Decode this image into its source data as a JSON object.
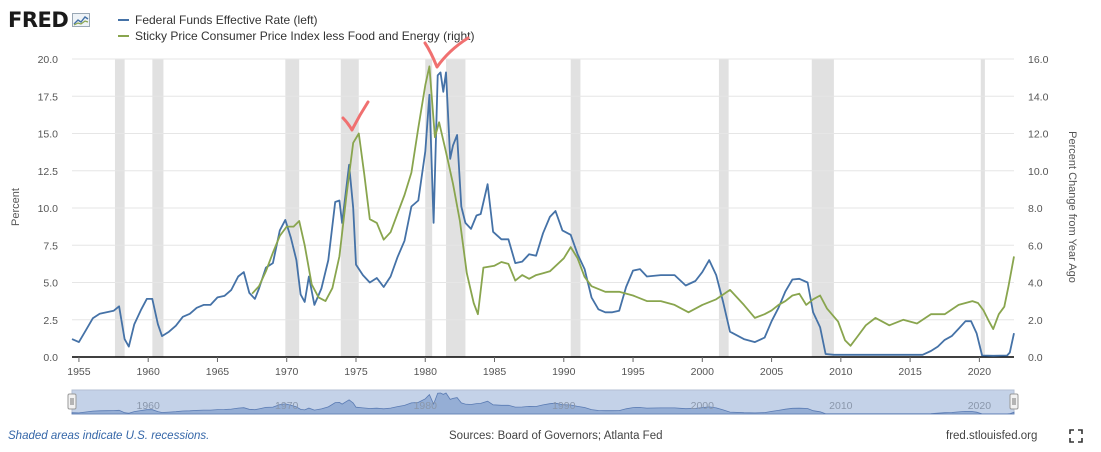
{
  "header": {
    "logo_text": "FRED",
    "legend": [
      {
        "label": "Federal Funds Effective Rate (left)",
        "color": "#4572a7"
      },
      {
        "label": "Sticky Price Consumer Price Index less Food and Energy (right)",
        "color": "#89a54e"
      }
    ]
  },
  "footer": {
    "recession_note": "Shaded areas indicate U.S. recessions.",
    "sources": "Sources: Board of Governors; Atlanta Fed",
    "site": "fred.stlouisfed.org",
    "fullscreen_icon": "fullscreen-icon"
  },
  "annotations": {
    "color": "#f07070",
    "marks": [
      "check-mark-1975",
      "check-mark-1981"
    ]
  },
  "chart_data": {
    "type": "line",
    "x_range": [
      1954.5,
      2022.5
    ],
    "x_ticks": [
      1955,
      1960,
      1965,
      1970,
      1975,
      1980,
      1985,
      1990,
      1995,
      2000,
      2005,
      2010,
      2015,
      2020
    ],
    "y_left": {
      "label": "Percent",
      "range": [
        0,
        20
      ],
      "ticks": [
        "0.0",
        "2.5",
        "5.0",
        "7.5",
        "10.0",
        "12.5",
        "15.0",
        "17.5",
        "20.0"
      ]
    },
    "y_right": {
      "label": "Percent Change from Year Ago",
      "range": [
        0,
        16
      ],
      "ticks": [
        "0.0",
        "2.0",
        "4.0",
        "6.0",
        "8.0",
        "10.0",
        "12.0",
        "14.0",
        "16.0"
      ]
    },
    "recessions": [
      [
        1957.6,
        1958.3
      ],
      [
        1960.3,
        1961.1
      ],
      [
        1969.9,
        1970.9
      ],
      [
        1973.9,
        1975.2
      ],
      [
        1980.0,
        1980.5
      ],
      [
        1981.5,
        1982.9
      ],
      [
        1990.5,
        1991.2
      ],
      [
        2001.2,
        2001.9
      ],
      [
        2007.9,
        2009.5
      ],
      [
        2020.1,
        2020.4
      ]
    ],
    "series": [
      {
        "name": "Federal Funds Effective Rate (left)",
        "axis": "left",
        "color": "#4572a7",
        "points": [
          [
            1954.5,
            1.2
          ],
          [
            1955,
            1.0
          ],
          [
            1955.5,
            1.8
          ],
          [
            1956,
            2.6
          ],
          [
            1956.5,
            2.9
          ],
          [
            1957,
            3.0
          ],
          [
            1957.5,
            3.1
          ],
          [
            1957.9,
            3.4
          ],
          [
            1958.3,
            1.2
          ],
          [
            1958.6,
            0.7
          ],
          [
            1959,
            2.2
          ],
          [
            1959.5,
            3.2
          ],
          [
            1959.9,
            3.9
          ],
          [
            1960.3,
            3.9
          ],
          [
            1960.7,
            2.2
          ],
          [
            1961,
            1.4
          ],
          [
            1961.5,
            1.7
          ],
          [
            1962,
            2.1
          ],
          [
            1962.5,
            2.7
          ],
          [
            1963,
            2.9
          ],
          [
            1963.5,
            3.3
          ],
          [
            1964,
            3.5
          ],
          [
            1964.5,
            3.5
          ],
          [
            1965,
            4.0
          ],
          [
            1965.5,
            4.1
          ],
          [
            1966,
            4.5
          ],
          [
            1966.5,
            5.4
          ],
          [
            1966.9,
            5.7
          ],
          [
            1967.3,
            4.3
          ],
          [
            1967.7,
            3.9
          ],
          [
            1968,
            4.6
          ],
          [
            1968.5,
            6.0
          ],
          [
            1969,
            6.3
          ],
          [
            1969.5,
            8.5
          ],
          [
            1969.9,
            9.2
          ],
          [
            1970.3,
            8.0
          ],
          [
            1970.7,
            6.5
          ],
          [
            1971,
            4.2
          ],
          [
            1971.3,
            3.7
          ],
          [
            1971.6,
            5.4
          ],
          [
            1972,
            3.5
          ],
          [
            1972.5,
            4.6
          ],
          [
            1973,
            6.5
          ],
          [
            1973.5,
            10.4
          ],
          [
            1973.8,
            10.5
          ],
          [
            1974,
            9.0
          ],
          [
            1974.5,
            12.9
          ],
          [
            1974.8,
            10.0
          ],
          [
            1975,
            6.2
          ],
          [
            1975.5,
            5.5
          ],
          [
            1976,
            5.0
          ],
          [
            1976.5,
            5.3
          ],
          [
            1977,
            4.7
          ],
          [
            1977.5,
            5.4
          ],
          [
            1978,
            6.7
          ],
          [
            1978.5,
            7.8
          ],
          [
            1979,
            10.1
          ],
          [
            1979.5,
            10.5
          ],
          [
            1980,
            13.8
          ],
          [
            1980.3,
            17.6
          ],
          [
            1980.6,
            9.0
          ],
          [
            1980.9,
            18.9
          ],
          [
            1981.1,
            19.1
          ],
          [
            1981.3,
            17.8
          ],
          [
            1981.5,
            19.1
          ],
          [
            1981.8,
            13.3
          ],
          [
            1982,
            14.2
          ],
          [
            1982.3,
            14.9
          ],
          [
            1982.6,
            10.1
          ],
          [
            1982.9,
            9.0
          ],
          [
            1983.3,
            8.6
          ],
          [
            1983.7,
            9.5
          ],
          [
            1984,
            9.6
          ],
          [
            1984.5,
            11.6
          ],
          [
            1984.9,
            8.4
          ],
          [
            1985.5,
            7.9
          ],
          [
            1986,
            7.9
          ],
          [
            1986.5,
            6.3
          ],
          [
            1987,
            6.4
          ],
          [
            1987.5,
            6.9
          ],
          [
            1988,
            6.8
          ],
          [
            1988.5,
            8.3
          ],
          [
            1989,
            9.4
          ],
          [
            1989.4,
            9.8
          ],
          [
            1989.9,
            8.5
          ],
          [
            1990.5,
            8.2
          ],
          [
            1991,
            6.9
          ],
          [
            1991.5,
            5.9
          ],
          [
            1992,
            4.0
          ],
          [
            1992.5,
            3.2
          ],
          [
            1993,
            3.0
          ],
          [
            1993.5,
            3.0
          ],
          [
            1994,
            3.1
          ],
          [
            1994.5,
            4.7
          ],
          [
            1995,
            5.8
          ],
          [
            1995.5,
            5.9
          ],
          [
            1996,
            5.4
          ],
          [
            1997,
            5.5
          ],
          [
            1998,
            5.5
          ],
          [
            1998.8,
            4.8
          ],
          [
            1999.5,
            5.1
          ],
          [
            2000,
            5.7
          ],
          [
            2000.5,
            6.5
          ],
          [
            2001,
            5.5
          ],
          [
            2001.5,
            3.7
          ],
          [
            2002,
            1.7
          ],
          [
            2003,
            1.2
          ],
          [
            2003.8,
            1.0
          ],
          [
            2004.5,
            1.3
          ],
          [
            2005,
            2.4
          ],
          [
            2005.5,
            3.3
          ],
          [
            2006,
            4.4
          ],
          [
            2006.5,
            5.2
          ],
          [
            2007,
            5.25
          ],
          [
            2007.6,
            5.0
          ],
          [
            2008,
            3.0
          ],
          [
            2008.5,
            2.0
          ],
          [
            2008.9,
            0.2
          ],
          [
            2009.5,
            0.15
          ],
          [
            2010,
            0.15
          ],
          [
            2012,
            0.15
          ],
          [
            2015.9,
            0.15
          ],
          [
            2016.5,
            0.4
          ],
          [
            2017,
            0.7
          ],
          [
            2017.5,
            1.15
          ],
          [
            2018,
            1.4
          ],
          [
            2018.5,
            1.9
          ],
          [
            2019,
            2.4
          ],
          [
            2019.4,
            2.4
          ],
          [
            2019.8,
            1.6
          ],
          [
            2020.2,
            0.1
          ],
          [
            2021,
            0.08
          ],
          [
            2022,
            0.1
          ],
          [
            2022.2,
            0.3
          ],
          [
            2022.5,
            1.6
          ]
        ]
      },
      {
        "name": "Sticky Price Consumer Price Index less Food and Energy (right)",
        "axis": "right",
        "color": "#89a54e",
        "points": [
          [
            1967.5,
            3.4
          ],
          [
            1968,
            3.8
          ],
          [
            1968.5,
            4.6
          ],
          [
            1969,
            5.6
          ],
          [
            1969.5,
            6.5
          ],
          [
            1970,
            7.0
          ],
          [
            1970.5,
            7.0
          ],
          [
            1970.9,
            7.3
          ],
          [
            1971.3,
            6.0
          ],
          [
            1971.8,
            3.9
          ],
          [
            1972.3,
            3.2
          ],
          [
            1972.8,
            3.0
          ],
          [
            1973.3,
            3.7
          ],
          [
            1973.8,
            5.4
          ],
          [
            1974.3,
            8.6
          ],
          [
            1974.8,
            11.5
          ],
          [
            1975.2,
            12.0
          ],
          [
            1975.6,
            9.8
          ],
          [
            1976,
            7.4
          ],
          [
            1976.5,
            7.2
          ],
          [
            1977,
            6.3
          ],
          [
            1977.5,
            6.7
          ],
          [
            1978,
            7.7
          ],
          [
            1978.5,
            8.7
          ],
          [
            1979,
            9.9
          ],
          [
            1979.5,
            12.3
          ],
          [
            1980,
            14.6
          ],
          [
            1980.3,
            15.6
          ],
          [
            1980.7,
            11.8
          ],
          [
            1981,
            12.6
          ],
          [
            1981.5,
            11.0
          ],
          [
            1982,
            9.3
          ],
          [
            1982.5,
            7.3
          ],
          [
            1983,
            4.5
          ],
          [
            1983.5,
            2.9
          ],
          [
            1983.8,
            2.3
          ],
          [
            1984.2,
            4.8
          ],
          [
            1985,
            4.9
          ],
          [
            1985.5,
            5.1
          ],
          [
            1986,
            5.0
          ],
          [
            1986.5,
            4.1
          ],
          [
            1987,
            4.4
          ],
          [
            1987.5,
            4.2
          ],
          [
            1988,
            4.4
          ],
          [
            1988.5,
            4.5
          ],
          [
            1989,
            4.6
          ],
          [
            1990,
            5.3
          ],
          [
            1990.5,
            5.9
          ],
          [
            1991,
            5.3
          ],
          [
            1991.5,
            4.3
          ],
          [
            1992,
            3.8
          ],
          [
            1993,
            3.5
          ],
          [
            1994,
            3.5
          ],
          [
            1995,
            3.3
          ],
          [
            1996,
            3.0
          ],
          [
            1997,
            3.0
          ],
          [
            1998,
            2.8
          ],
          [
            1999,
            2.4
          ],
          [
            2000,
            2.8
          ],
          [
            2001,
            3.1
          ],
          [
            2002,
            3.6
          ],
          [
            2003,
            2.8
          ],
          [
            2003.8,
            2.1
          ],
          [
            2004.5,
            2.3
          ],
          [
            2005,
            2.5
          ],
          [
            2005.5,
            2.8
          ],
          [
            2006,
            3.0
          ],
          [
            2006.5,
            3.3
          ],
          [
            2007,
            3.4
          ],
          [
            2007.5,
            2.8
          ],
          [
            2008,
            3.1
          ],
          [
            2008.5,
            3.3
          ],
          [
            2009,
            2.6
          ],
          [
            2009.8,
            1.9
          ],
          [
            2010.3,
            0.9
          ],
          [
            2010.7,
            0.6
          ],
          [
            2011.2,
            1.1
          ],
          [
            2011.8,
            1.7
          ],
          [
            2012.5,
            2.1
          ],
          [
            2013.5,
            1.7
          ],
          [
            2014.5,
            2.0
          ],
          [
            2015.5,
            1.8
          ],
          [
            2016.5,
            2.3
          ],
          [
            2017.5,
            2.3
          ],
          [
            2018.5,
            2.8
          ],
          [
            2019.5,
            3.0
          ],
          [
            2019.9,
            2.9
          ],
          [
            2020.3,
            2.5
          ],
          [
            2020.7,
            1.9
          ],
          [
            2021,
            1.5
          ],
          [
            2021.4,
            2.3
          ],
          [
            2021.8,
            2.7
          ],
          [
            2022.1,
            3.8
          ],
          [
            2022.5,
            5.4
          ]
        ]
      }
    ],
    "navigator": {
      "ticks": [
        "1960",
        "1970",
        "1980",
        "1990",
        "2000",
        "2010",
        "2020"
      ]
    }
  }
}
